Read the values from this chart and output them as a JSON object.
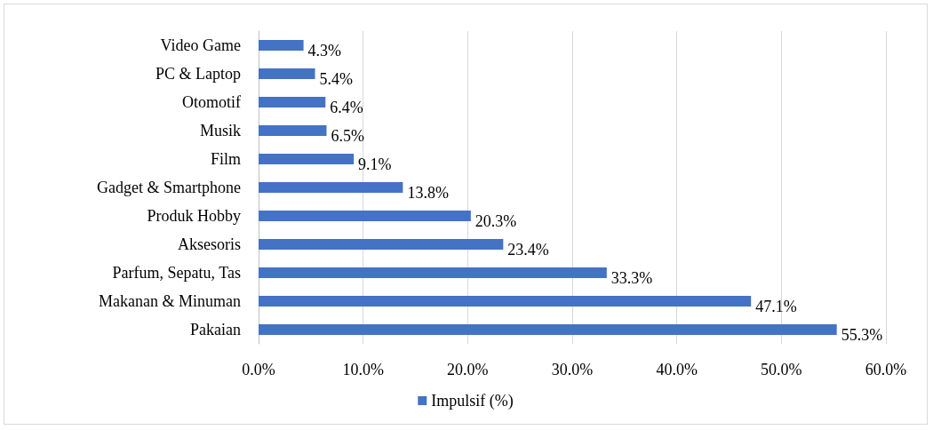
{
  "chart_data": {
    "type": "bar",
    "orientation": "horizontal",
    "categories": [
      "Video Game",
      "PC & Laptop",
      "Otomotif",
      "Musik",
      "Film",
      "Gadget & Smartphone",
      "Produk Hobby",
      "Aksesoris",
      "Parfum, Sepatu, Tas",
      "Makanan & Minuman",
      "Pakaian"
    ],
    "series": [
      {
        "name": "Impulsif (%)",
        "color": "#4472c4",
        "values": [
          4.3,
          5.4,
          6.4,
          6.5,
          9.1,
          13.8,
          20.3,
          23.4,
          33.3,
          47.1,
          55.3
        ],
        "value_labels": [
          "4.3%",
          "5.4%",
          "6.4%",
          "6.5%",
          "9.1%",
          "13.8%",
          "20.3%",
          "23.4%",
          "33.3%",
          "47.1%",
          "55.3%"
        ]
      }
    ],
    "xlim": [
      0,
      60
    ],
    "xticks": [
      {
        "value": 0,
        "label": "0.0%"
      },
      {
        "value": 10,
        "label": "10.0%"
      },
      {
        "value": 20,
        "label": "20.0%"
      },
      {
        "value": 30,
        "label": "30.0%"
      },
      {
        "value": 40,
        "label": "40.0%"
      },
      {
        "value": 50,
        "label": "50.0%"
      },
      {
        "value": 60,
        "label": "60.0%"
      }
    ],
    "grid": "x",
    "legend": "bottom"
  }
}
